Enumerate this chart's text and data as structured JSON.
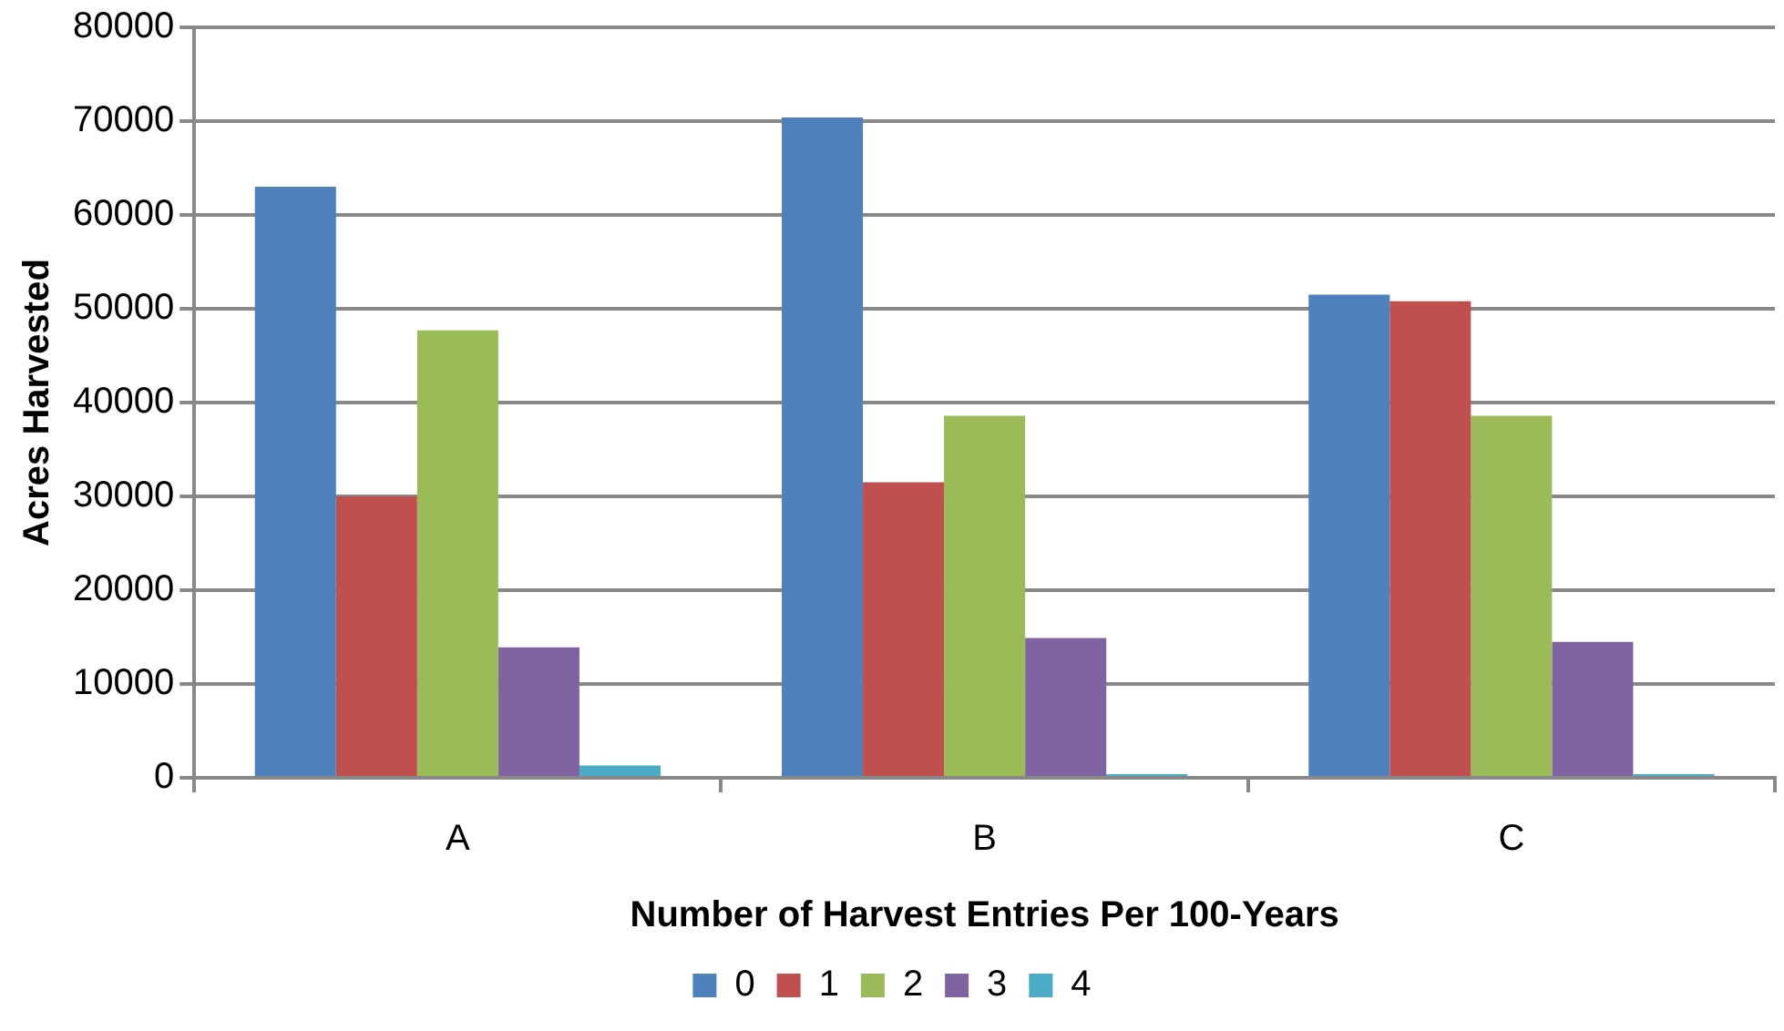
{
  "chart_data": {
    "type": "bar",
    "xlabel": "Number of Harvest Entries Per 100-Years",
    "ylabel": "Acres Harvested",
    "categories": [
      "A",
      "B",
      "C"
    ],
    "series": [
      {
        "name": "0",
        "color": "#4f81bd",
        "values": [
          63000,
          70400,
          51500
        ]
      },
      {
        "name": "1",
        "color": "#c0504d",
        "values": [
          30000,
          31500,
          50800
        ]
      },
      {
        "name": "2",
        "color": "#9bbb59",
        "values": [
          47700,
          38600,
          38600
        ]
      },
      {
        "name": "3",
        "color": "#8064a2",
        "values": [
          13900,
          14900,
          14500
        ]
      },
      {
        "name": "4",
        "color": "#4bacc6",
        "values": [
          1300,
          400,
          400
        ]
      }
    ],
    "ylim": [
      0,
      80000
    ],
    "yticks": [
      0,
      10000,
      20000,
      30000,
      40000,
      50000,
      60000,
      70000,
      80000
    ],
    "grid": "y",
    "legend": "bottom"
  }
}
